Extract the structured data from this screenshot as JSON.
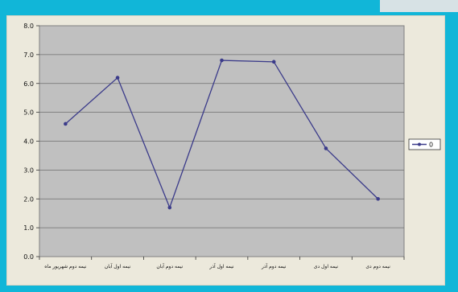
{
  "chart_data": {
    "type": "line",
    "categories": [
      "نیمه دوم شهریور ماه",
      "نیمه اول آبان",
      "نیمه دوم آبان",
      "نیمه اول آذر",
      "نیمه دوم آذر",
      "نیمه اول دی",
      "نیمه دوم دی"
    ],
    "series": [
      {
        "name": "0",
        "values": [
          4.6,
          6.2,
          1.7,
          6.8,
          6.75,
          3.75,
          2.0
        ]
      }
    ],
    "yticks": [
      "0.0",
      "1.0",
      "2.0",
      "3.0",
      "4.0",
      "5.0",
      "6.0",
      "7.0",
      "8.0"
    ],
    "ylim": [
      0,
      8
    ],
    "grid": true,
    "legend_position": "right",
    "colors": {
      "line": "#3b3b8a",
      "plot_bg": "#c0c0c0",
      "panel_bg": "#ece9dc",
      "frame": "#11b6d8"
    }
  }
}
